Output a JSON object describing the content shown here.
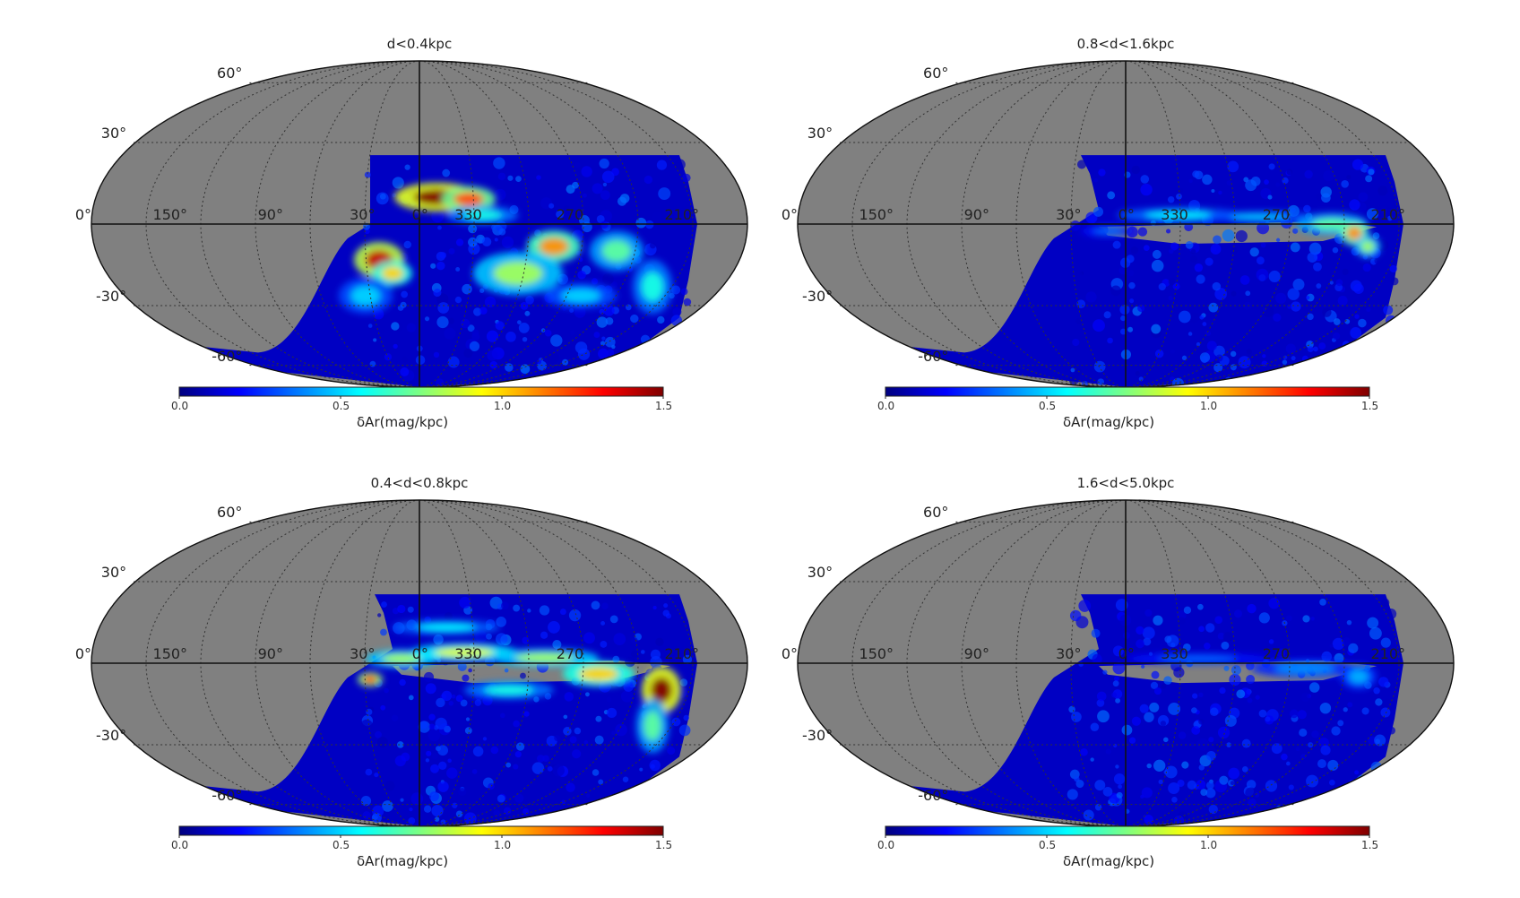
{
  "chart_data": [
    {
      "type": "heatmap",
      "projection": "mollweide",
      "title": "d<0.4kpc",
      "colorbar": {
        "label": "δAr(mag/kpc)",
        "range": [
          0.0,
          1.5
        ],
        "ticks": [
          "0.0",
          "0.5",
          "1.0",
          "1.5"
        ],
        "colormap": "jet"
      },
      "lat_ticks": [
        "60°",
        "30°",
        "0°",
        "-30°",
        "-60°"
      ],
      "lon_ticks": [
        "150°",
        "90°",
        "30°",
        "0°",
        "330",
        "270",
        "210°"
      ],
      "coverage": "partial sky; no data north of about +25° or on the high-longitude side; heavily covered toward l≈330–210°",
      "features": "large saturated (≈1.5) clump near l≈0–25°, b≈+10–25°; strong clumps (≈1.0–1.5) near l≈30°, b≈-10°; moderate (≈0.6–1.2) near l≈300°, b≈-10°"
    },
    {
      "type": "heatmap",
      "projection": "mollweide",
      "title": "0.8<d<1.6kpc",
      "colorbar": {
        "label": "δAr(mag/kpc)",
        "range": [
          0.0,
          1.5
        ],
        "ticks": [
          "0.0",
          "0.5",
          "1.0",
          "1.5"
        ],
        "colormap": "jet"
      },
      "lat_ticks": [
        "60°",
        "30°",
        "0°",
        "-30°",
        "-60°"
      ],
      "lon_ticks": [
        "150°",
        "90°",
        "30°",
        "0°",
        "330",
        "270",
        "210°"
      ],
      "coverage": "partial sky; no data north of about +25°",
      "features": "mostly low values (≈0.0–0.3); narrow band of ≈0.4–0.8 along the plane; peak ≈1.2 near l≈215°, b≈0°"
    },
    {
      "type": "heatmap",
      "projection": "mollweide",
      "title": "0.4<d<0.8kpc",
      "colorbar": {
        "label": "δAr(mag/kpc)",
        "range": [
          0.0,
          1.5
        ],
        "ticks": [
          "0.0",
          "0.5",
          "1.0",
          "1.5"
        ],
        "colormap": "jet"
      },
      "lat_ticks": [
        "60°",
        "30°",
        "0°",
        "-30°",
        "-60°"
      ],
      "lon_ticks": [
        "150°",
        "90°",
        "30°",
        "0°",
        "330",
        "270",
        "210°"
      ],
      "coverage": "partial sky; no data north of about +25°",
      "features": "structured band along b≈0° with values ≈0.6–1.2; strong ≈1.5 near l≈210°, b≈-5–15°"
    },
    {
      "type": "heatmap",
      "projection": "mollweide",
      "title": "1.6<d<5.0kpc",
      "colorbar": {
        "label": "δAr(mag/kpc)",
        "range": [
          0.0,
          1.5
        ],
        "ticks": [
          "0.0",
          "0.5",
          "1.0",
          "1.5"
        ],
        "colormap": "jet"
      },
      "lat_ticks": [
        "60°",
        "30°",
        "0°",
        "-30°",
        "-60°"
      ],
      "lon_ticks": [
        "150°",
        "90°",
        "30°",
        "0°",
        "330",
        "270",
        "210°"
      ],
      "coverage": "partial sky; no data north of about +25°",
      "features": "nearly uniform low values (≈0.0–0.3); faint ≈0.3–0.5 near plane"
    }
  ],
  "colors": {
    "no_data": "#808080",
    "background": "#ffffff",
    "grid": "#333333",
    "jet": [
      "#00007f",
      "#0000ff",
      "#007fff",
      "#00ffff",
      "#7fff7f",
      "#ffff00",
      "#ff7f00",
      "#ff0000",
      "#7f0000"
    ]
  }
}
